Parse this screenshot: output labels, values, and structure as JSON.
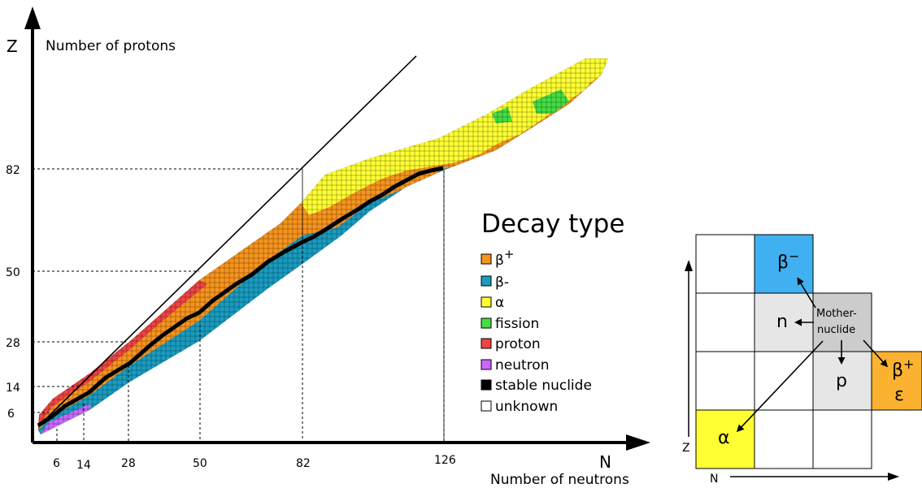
{
  "axes": {
    "y_symbol": "Z",
    "y_label": "Number of protons",
    "x_symbol": "N",
    "x_label": "Number of neutrons",
    "x_ticks": [
      "6",
      "14",
      "28",
      "50",
      "82",
      "126"
    ],
    "y_ticks": [
      "6",
      "14",
      "28",
      "50",
      "82"
    ]
  },
  "legend": {
    "title": "Decay type",
    "items": [
      {
        "key": "beta_plus",
        "color": "#f7941d"
      },
      {
        "key": "beta_minus",
        "label": "β-",
        "color": "#1a9bbf"
      },
      {
        "key": "alpha",
        "label": "α",
        "color": "#ffff33"
      },
      {
        "key": "fission",
        "label": "fission",
        "color": "#44dd44"
      },
      {
        "key": "proton",
        "label": "proton",
        "color": "#ee4444"
      },
      {
        "key": "neutron",
        "label": "neutron",
        "color": "#cc66ff"
      },
      {
        "key": "stable",
        "label": "stable nuclide",
        "color": "#000000"
      },
      {
        "key": "unknown",
        "label": "unknown",
        "color": "#ffffff"
      }
    ],
    "beta_plus_base": "β",
    "beta_plus_sup": "+"
  },
  "inset": {
    "beta_minus_base": "β",
    "beta_minus_sup": "−",
    "neutron_label": "n",
    "proton_label": "p",
    "beta_plus_base": "β",
    "beta_plus_sup": "+",
    "epsilon_label": "ε",
    "alpha_label": "α",
    "mother_line1": "Mother-",
    "mother_line2": "nuclide",
    "z_label": "Z",
    "n_label": "N",
    "colors": {
      "beta_minus": "#40b0f0",
      "beta_plus": "#fbb231",
      "alpha": "#ffff33",
      "shaded": "#e6e6e6",
      "mother": "#cccccc"
    }
  }
}
